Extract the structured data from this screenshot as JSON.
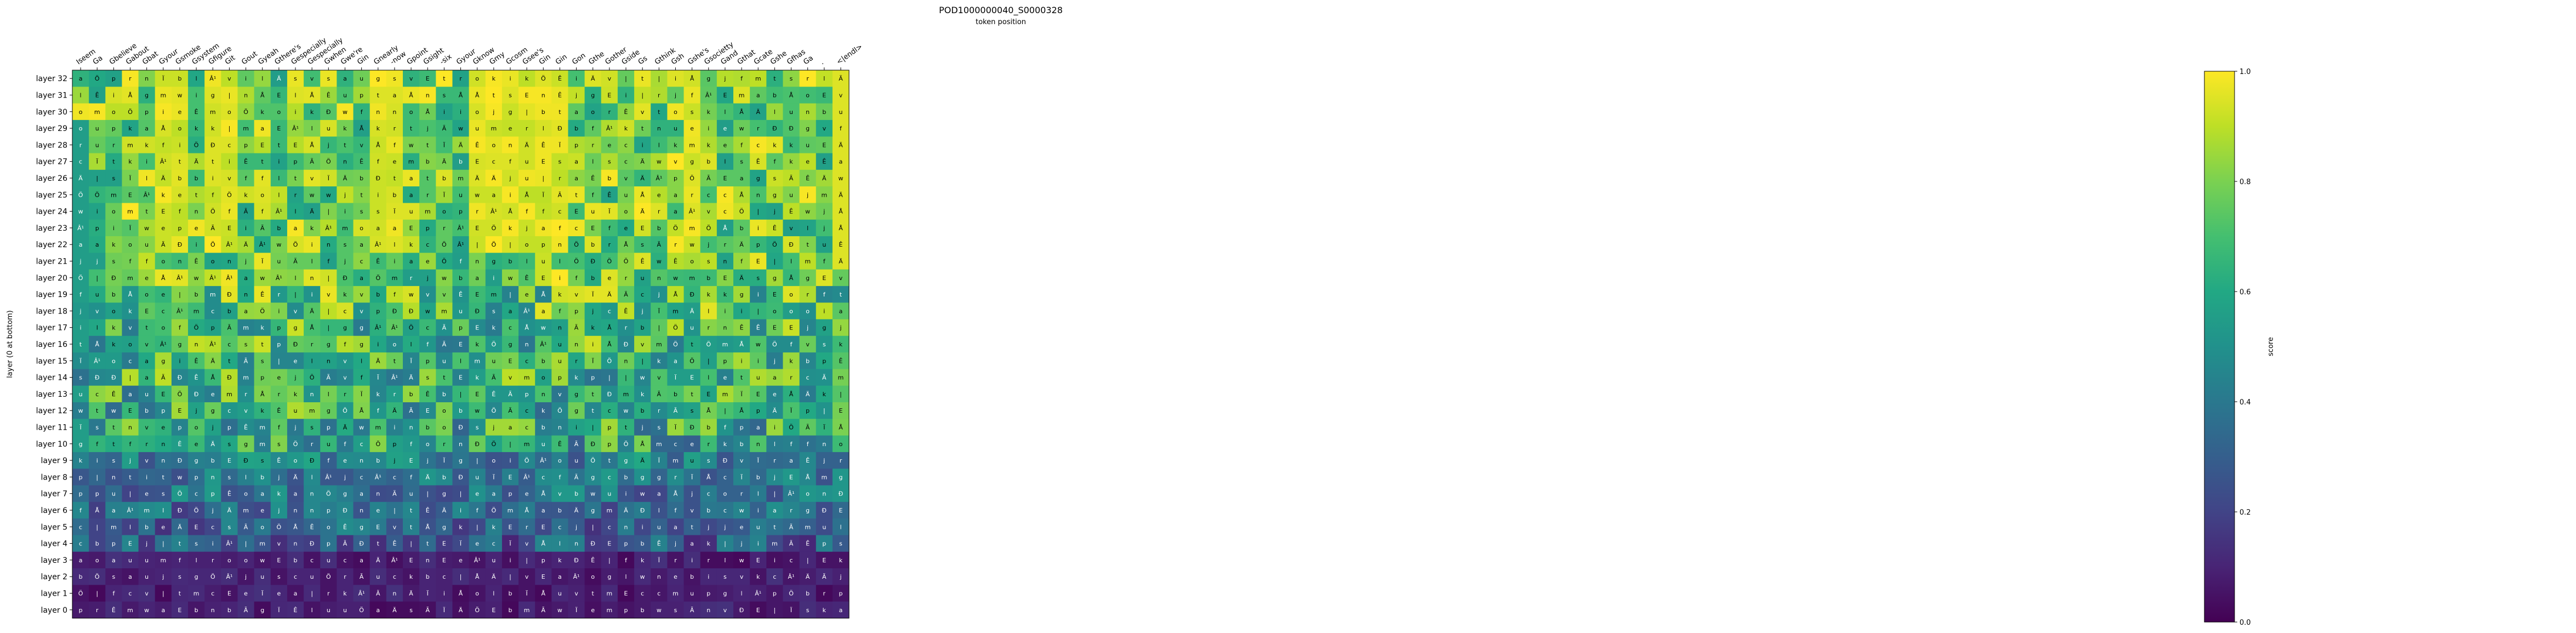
{
  "chart_data": {
    "type": "heatmap",
    "title": "POD1000000040_S0000328",
    "subtitle": "token position",
    "ylabel": "layer (0 at bottom)",
    "colorbar_label": "score",
    "colorbar_ticks": [
      "0.0",
      "0.2",
      "0.4",
      "0.6",
      "0.8",
      "1.0"
    ],
    "zlim": [
      0,
      1
    ],
    "colormap": "viridis",
    "x_tokens": [
      "Iseem",
      "Ga",
      "Gbelieve",
      "Gabout",
      "Gbat",
      "Gyour",
      "Gsmoke",
      "Gsystem",
      "Gfigure",
      "Git",
      "Gout",
      "Gyeah",
      "Gthere's",
      "Gespecially",
      "Gespecially",
      "Gwhen",
      "Gwe're",
      "Gin",
      "Gnearly",
      "-now",
      "Gpoint",
      "Gsight",
      "-six",
      "Gyour",
      "Gknow",
      "Gmy",
      "Gcosm",
      "Gsee's",
      "Gin",
      "Gin",
      "Gon",
      "Gthe",
      "Gother",
      "Gside",
      "Gs",
      "Gthink",
      "Gsh",
      "Gshe's",
      "Gsocietty",
      "Gand",
      "Gthat",
      "Gcate",
      "Gshe",
      "Gfhas",
      "Ga",
      ".",
      "<|endl>"
    ],
    "layers": [
      "layer 32",
      "layer 31",
      "layer 30",
      "layer 29",
      "layer 28",
      "layer 27",
      "layer 26",
      "layer 25",
      "layer 24",
      "layer 23",
      "layer 22",
      "layer 21",
      "layer 20",
      "layer 19",
      "layer 18",
      "layer 17",
      "layer 16",
      "layer 15",
      "layer 14",
      "layer 13",
      "layer 12",
      "layer 11",
      "layer 10",
      "layer 9",
      "layer 8",
      "layer 7",
      "layer 6",
      "layer 5",
      "layer 4",
      "layer 3",
      "layer 2",
      "layer 1",
      "layer 0"
    ],
    "cell_token_set": [
      "a",
      "Ã",
      "Ê",
      "Ï",
      "t",
      "i",
      "m",
      "E",
      "f",
      "Â¹",
      "o",
      "w",
      "n",
      "s",
      "e",
      "k",
      "l",
      "u",
      "r",
      "b",
      "|",
      "j",
      "p",
      "c",
      "Ð",
      "Å",
      "Ä",
      "v",
      "g",
      "Ö"
    ],
    "values": []
  }
}
